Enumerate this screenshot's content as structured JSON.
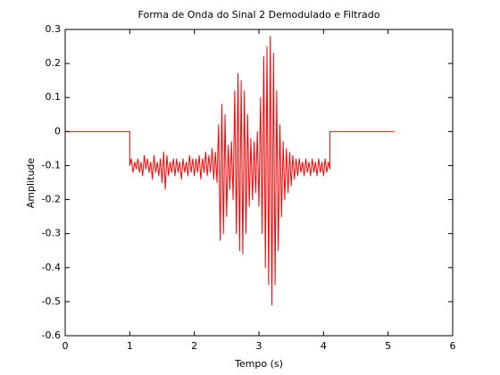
{
  "chart_data": {
    "type": "line",
    "title": "Forma de Onda do Sinal 2 Demodulado e Filtrado",
    "x_label": "Tempo (s)",
    "y_label": "Amplitude",
    "color": "#ff0000",
    "xlim": [
      0,
      6
    ],
    "ylim": [
      -0.6,
      0.3
    ],
    "xticks": [
      0,
      1,
      2,
      3,
      4,
      5,
      6
    ],
    "yticks": [
      -0.6,
      -0.5,
      -0.4,
      -0.3,
      -0.2,
      -0.1,
      0,
      0.1,
      0.2,
      0.3
    ],
    "x": [
      0,
      1,
      1,
      1.025,
      1.05,
      1.075,
      1.1,
      1.125,
      1.15,
      1.175,
      1.2,
      1.225,
      1.25,
      1.275,
      1.3,
      1.325,
      1.35,
      1.375,
      1.4,
      1.425,
      1.45,
      1.475,
      1.5,
      1.525,
      1.55,
      1.575,
      1.6,
      1.625,
      1.65,
      1.675,
      1.7,
      1.725,
      1.75,
      1.775,
      1.8,
      1.825,
      1.85,
      1.875,
      1.9,
      1.925,
      1.95,
      1.975,
      2.0,
      2.025,
      2.05,
      2.075,
      2.1,
      2.125,
      2.15,
      2.175,
      2.2,
      2.225,
      2.25,
      2.275,
      2.3,
      2.325,
      2.35,
      2.375,
      2.4,
      2.425,
      2.45,
      2.475,
      2.5,
      2.525,
      2.55,
      2.575,
      2.6,
      2.625,
      2.65,
      2.675,
      2.7,
      2.725,
      2.75,
      2.775,
      2.8,
      2.825,
      2.85,
      2.875,
      2.9,
      2.925,
      2.95,
      2.975,
      3.0,
      3.025,
      3.05,
      3.075,
      3.1,
      3.125,
      3.15,
      3.175,
      3.2,
      3.225,
      3.25,
      3.275,
      3.3,
      3.325,
      3.35,
      3.375,
      3.4,
      3.425,
      3.45,
      3.475,
      3.5,
      3.525,
      3.55,
      3.575,
      3.6,
      3.625,
      3.65,
      3.675,
      3.7,
      3.725,
      3.75,
      3.775,
      3.8,
      3.825,
      3.85,
      3.875,
      3.9,
      3.925,
      3.95,
      3.975,
      4.0,
      4.025,
      4.05,
      4.075,
      4.1,
      4.1,
      5.1
    ],
    "values": [
      0,
      0,
      -0.1,
      -0.08,
      -0.12,
      -0.09,
      -0.11,
      -0.08,
      -0.12,
      -0.09,
      -0.13,
      -0.07,
      -0.11,
      -0.08,
      -0.12,
      -0.09,
      -0.14,
      -0.07,
      -0.12,
      -0.09,
      -0.13,
      -0.08,
      -0.15,
      -0.06,
      -0.17,
      -0.07,
      -0.13,
      -0.09,
      -0.12,
      -0.08,
      -0.13,
      -0.08,
      -0.12,
      -0.09,
      -0.14,
      -0.08,
      -0.12,
      -0.09,
      -0.13,
      -0.07,
      -0.12,
      -0.08,
      -0.13,
      -0.08,
      -0.12,
      -0.07,
      -0.14,
      -0.08,
      -0.12,
      -0.06,
      -0.13,
      -0.07,
      -0.12,
      -0.05,
      -0.14,
      -0.06,
      -0.15,
      0.02,
      -0.32,
      0.08,
      -0.3,
      0.05,
      -0.25,
      -0.04,
      -0.17,
      -0.03,
      -0.2,
      0.12,
      -0.3,
      0.17,
      -0.35,
      0.15,
      -0.36,
      0.12,
      -0.3,
      0.05,
      -0.22,
      -0.02,
      -0.2,
      -0.03,
      -0.18,
      0.0,
      -0.22,
      0.1,
      -0.3,
      0.22,
      -0.4,
      0.25,
      -0.45,
      0.28,
      -0.51,
      0.23,
      -0.45,
      0.12,
      -0.35,
      0.02,
      -0.25,
      -0.03,
      -0.2,
      -0.05,
      -0.18,
      -0.06,
      -0.16,
      -0.07,
      -0.14,
      -0.08,
      -0.13,
      -0.08,
      -0.12,
      -0.09,
      -0.13,
      -0.08,
      -0.12,
      -0.09,
      -0.13,
      -0.08,
      -0.12,
      -0.09,
      -0.13,
      -0.08,
      -0.12,
      -0.09,
      -0.13,
      -0.08,
      -0.12,
      -0.09,
      -0.11,
      0,
      0
    ]
  }
}
